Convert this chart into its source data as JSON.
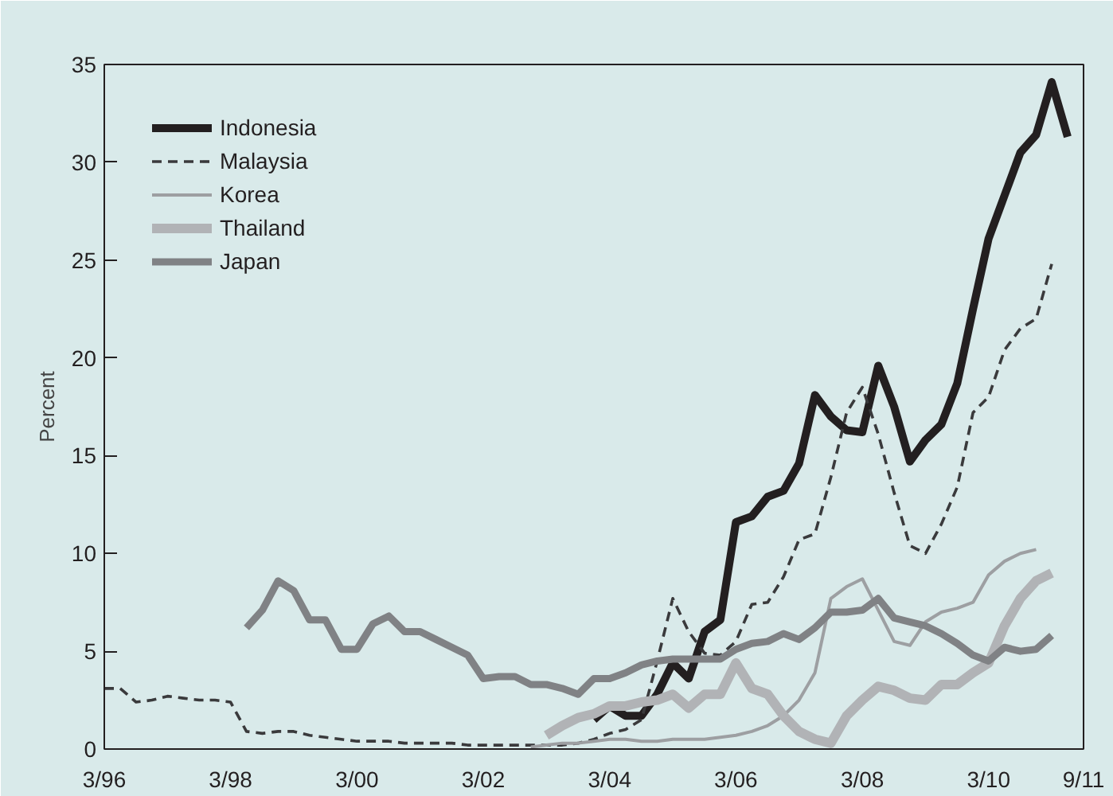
{
  "chart_data": {
    "type": "line",
    "ylabel": "Percent",
    "x": [
      "1996-03",
      "1996-06",
      "1996-09",
      "1996-12",
      "1997-03",
      "1997-06",
      "1997-09",
      "1997-12",
      "1998-03",
      "1998-06",
      "1998-09",
      "1998-12",
      "1999-03",
      "1999-06",
      "1999-09",
      "1999-12",
      "2000-03",
      "2000-06",
      "2000-09",
      "2000-12",
      "2001-03",
      "2001-06",
      "2001-09",
      "2001-12",
      "2002-03",
      "2002-06",
      "2002-09",
      "2002-12",
      "2003-03",
      "2003-06",
      "2003-09",
      "2003-12",
      "2004-03",
      "2004-06",
      "2004-09",
      "2004-12",
      "2005-03",
      "2005-06",
      "2005-09",
      "2005-12",
      "2006-03",
      "2006-06",
      "2006-09",
      "2006-12",
      "2007-03",
      "2007-06",
      "2007-09",
      "2007-12",
      "2008-03",
      "2008-06",
      "2008-09",
      "2008-12",
      "2009-03",
      "2009-06",
      "2009-09",
      "2009-12",
      "2010-03",
      "2010-06",
      "2010-09",
      "2010-12",
      "2011-03",
      "2011-06"
    ],
    "series": [
      {
        "name": "Indonesia",
        "color": "#231f20",
        "values": [
          null,
          null,
          null,
          null,
          null,
          null,
          null,
          null,
          null,
          null,
          null,
          null,
          null,
          null,
          null,
          null,
          null,
          null,
          null,
          null,
          null,
          null,
          null,
          null,
          null,
          null,
          null,
          null,
          null,
          null,
          null,
          1.5,
          2.2,
          1.7,
          1.7,
          2.8,
          4.4,
          3.6,
          6.0,
          6.6,
          11.6,
          11.9,
          12.9,
          13.2,
          14.6,
          18.1,
          17.0,
          16.3,
          16.2,
          19.6,
          17.5,
          14.7,
          15.8,
          16.6,
          18.7,
          22.5,
          26.1,
          28.3,
          30.5,
          31.4,
          34.1,
          31.3
        ]
      },
      {
        "name": "Malaysia",
        "color": "#3a3a3c",
        "line_style": "dashed",
        "values": [
          3.1,
          3.1,
          2.4,
          2.5,
          2.7,
          2.6,
          2.5,
          2.5,
          2.4,
          0.9,
          0.8,
          0.9,
          0.9,
          0.7,
          0.6,
          0.5,
          0.4,
          0.4,
          0.4,
          0.3,
          0.3,
          0.3,
          0.3,
          0.2,
          0.2,
          0.2,
          0.2,
          0.2,
          0.2,
          0.2,
          0.3,
          0.5,
          0.8,
          1.0,
          1.5,
          4.5,
          7.7,
          6.0,
          4.9,
          4.8,
          5.5,
          7.4,
          7.5,
          8.8,
          10.7,
          11.0,
          13.9,
          17.2,
          18.5,
          16.1,
          13.1,
          10.4,
          10.0,
          11.5,
          13.4,
          17.2,
          18.0,
          20.4,
          21.5,
          22.0,
          24.8,
          null
        ]
      },
      {
        "name": "Korea",
        "color": "#9d9fa2",
        "values": [
          null,
          null,
          null,
          null,
          null,
          null,
          null,
          null,
          null,
          null,
          null,
          null,
          null,
          null,
          null,
          null,
          null,
          null,
          null,
          null,
          null,
          null,
          null,
          null,
          null,
          null,
          null,
          0.1,
          0.2,
          0.3,
          0.3,
          0.4,
          0.5,
          0.5,
          0.4,
          0.4,
          0.5,
          0.5,
          0.5,
          0.6,
          0.7,
          0.9,
          1.2,
          1.7,
          2.5,
          3.9,
          7.7,
          8.3,
          8.7,
          7.1,
          5.5,
          5.3,
          6.5,
          7.0,
          7.2,
          7.5,
          8.9,
          9.6,
          10.0,
          10.2,
          null,
          null
        ]
      },
      {
        "name": "Thailand",
        "color": "#b1b3b6",
        "values": [
          null,
          null,
          null,
          null,
          null,
          null,
          null,
          null,
          null,
          null,
          null,
          null,
          null,
          null,
          null,
          null,
          null,
          null,
          null,
          null,
          null,
          null,
          null,
          null,
          null,
          null,
          null,
          null,
          0.7,
          1.2,
          1.6,
          1.8,
          2.2,
          2.2,
          2.4,
          2.5,
          2.8,
          2.1,
          2.8,
          2.8,
          4.4,
          3.1,
          2.8,
          1.7,
          0.9,
          0.5,
          0.3,
          1.7,
          2.5,
          3.2,
          3.0,
          2.6,
          2.5,
          3.3,
          3.3,
          3.9,
          4.4,
          6.3,
          7.7,
          8.6,
          9.0,
          null
        ]
      },
      {
        "name": "Japan",
        "color": "#808285",
        "values": [
          null,
          null,
          null,
          null,
          null,
          null,
          null,
          null,
          null,
          6.2,
          7.1,
          8.6,
          8.1,
          6.6,
          6.6,
          5.1,
          5.1,
          6.4,
          6.8,
          6.0,
          6.0,
          5.6,
          5.2,
          4.8,
          3.6,
          3.7,
          3.7,
          3.3,
          3.3,
          3.1,
          2.8,
          3.6,
          3.6,
          3.9,
          4.3,
          4.5,
          4.6,
          4.6,
          4.6,
          4.6,
          5.1,
          5.4,
          5.5,
          5.9,
          5.6,
          6.2,
          7.0,
          7.0,
          7.1,
          7.7,
          6.7,
          6.5,
          6.3,
          5.9,
          5.4,
          4.8,
          4.5,
          5.2,
          5.0,
          5.1,
          5.8,
          null
        ]
      }
    ],
    "xlim": [
      "1996-03",
      "2011-09"
    ],
    "xticks": [
      {
        "value": "1996-03",
        "label": "3/96"
      },
      {
        "value": "1998-03",
        "label": "3/98"
      },
      {
        "value": "2000-03",
        "label": "3/00"
      },
      {
        "value": "2002-03",
        "label": "3/02"
      },
      {
        "value": "2004-03",
        "label": "3/04"
      },
      {
        "value": "2006-03",
        "label": "3/06"
      },
      {
        "value": "2008-03",
        "label": "3/08"
      },
      {
        "value": "2010-03",
        "label": "3/10"
      },
      {
        "value": "2011-09",
        "label": "9/11"
      }
    ],
    "ylim": [
      0,
      35
    ],
    "yticks": [
      0,
      5,
      10,
      15,
      20,
      25,
      30,
      35
    ],
    "grid": false,
    "legend": "top left",
    "marker": "none"
  }
}
